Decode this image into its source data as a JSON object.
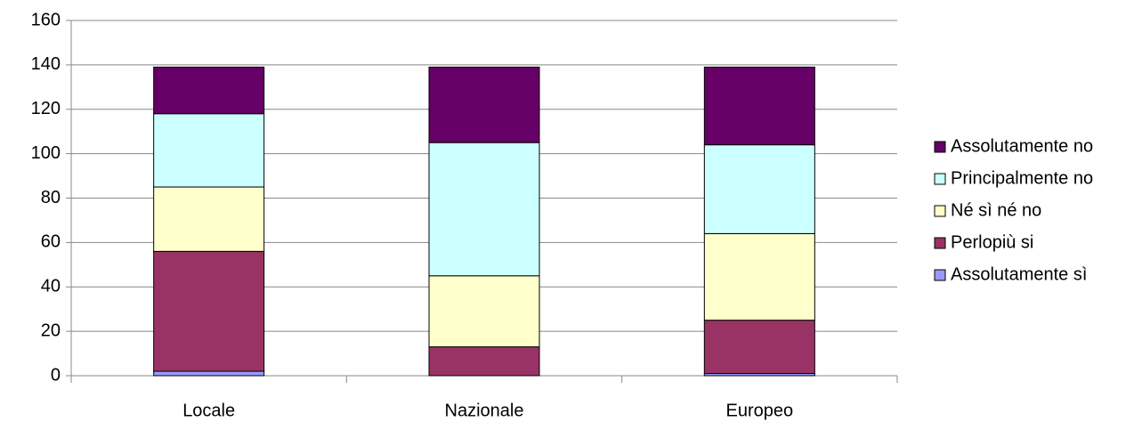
{
  "chart_data": {
    "type": "stacked_bar",
    "categories": [
      "Locale",
      "Nazionale",
      "Europeo"
    ],
    "series": [
      {
        "name": "Assolutamente sì",
        "color": "#9999ff",
        "values": [
          2,
          0,
          1
        ]
      },
      {
        "name": "Perlopiù si",
        "color": "#993366",
        "values": [
          54,
          13,
          24
        ]
      },
      {
        "name": "Né sì né no",
        "color": "#ffffcc",
        "values": [
          29,
          32,
          39
        ]
      },
      {
        "name": "Principalmente no",
        "color": "#ccffff",
        "values": [
          33,
          60,
          40
        ]
      },
      {
        "name": "Assolutamente no",
        "color": "#660066",
        "values": [
          21,
          34,
          35
        ]
      }
    ],
    "ylim": [
      0,
      160
    ],
    "yticks": [
      0,
      20,
      40,
      60,
      80,
      100,
      120,
      140,
      160
    ],
    "grid": true,
    "legend": "right"
  }
}
